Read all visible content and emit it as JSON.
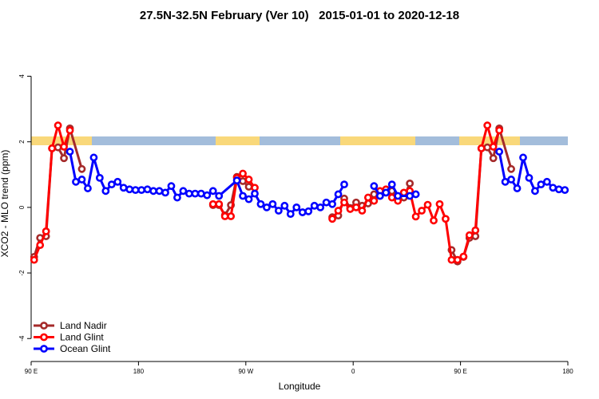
{
  "chart_data": {
    "type": "line",
    "title": "27.5N-32.5N February (Ver 10)   2015-01-01 to 2020-12-18",
    "x_label": "Longitude",
    "y_label": "XCO2 - MLO trend (ppm)",
    "xlim": [
      90,
      540
    ],
    "ylim": [
      -4.7,
      5.4
    ],
    "xticks": [
      {
        "value": 90,
        "label": "90 E"
      },
      {
        "value": 180,
        "label": "180"
      },
      {
        "value": 270,
        "label": "90 W"
      },
      {
        "value": 360,
        "label": "0"
      },
      {
        "value": 450,
        "label": "90 E"
      },
      {
        "value": 540,
        "label": "180"
      }
    ],
    "yticks": [
      -4,
      -2,
      0,
      2,
      4
    ],
    "legend": "bottom-left",
    "series": [
      {
        "name": "Land Nadir",
        "color": "#a52a2a",
        "x": [
          92.5,
          97.5,
          102.5,
          107.5,
          112.5,
          117.5,
          122.5,
          132.5,
          null,
          242.5,
          247.5,
          252.5,
          257.5,
          262.5,
          267.5,
          272.5,
          null,
          342.5,
          347.5,
          352.5,
          357.5,
          362.5,
          367.5,
          372.5,
          377.5,
          382.5,
          387.5,
          392.5,
          397.5,
          402.5,
          407.5,
          null,
          442.5,
          447.5,
          452.5,
          457.5,
          462.5,
          467.5,
          472.5,
          477.5,
          482.5,
          492.5
        ],
        "values": [
          -1.51,
          -0.93,
          -0.88,
          1.8,
          1.83,
          1.5,
          2.41,
          1.17,
          null,
          0.07,
          0.07,
          -0.24,
          0.07,
          0.93,
          0.8,
          0.63,
          null,
          -0.3,
          -0.25,
          0.27,
          -0.02,
          0.15,
          0.05,
          0.12,
          0.4,
          0.35,
          0.45,
          0.5,
          0.3,
          0.3,
          0.73,
          null,
          -1.3,
          -1.65,
          -1.51,
          -0.93,
          -0.88,
          1.8,
          1.83,
          1.5,
          2.41,
          1.17
        ]
      },
      {
        "name": "Land Glint",
        "color": "#ff0000",
        "x": [
          92.5,
          97.5,
          102.5,
          107.5,
          112.5,
          117.5,
          122.5,
          null,
          242.5,
          247.5,
          252.5,
          257.5,
          262.5,
          267.5,
          272.5,
          277.5,
          null,
          342.5,
          347.5,
          352.5,
          357.5,
          362.5,
          367.5,
          372.5,
          377.5,
          382.5,
          387.5,
          392.5,
          397.5,
          402.5,
          407.5,
          412.5,
          417.5,
          422.5,
          427.5,
          432.5,
          437.5,
          442.5,
          447.5,
          452.5,
          457.5,
          462.5,
          467.5,
          472.5,
          477.5,
          482.5
        ],
        "values": [
          -1.6,
          -1.15,
          -0.73,
          1.8,
          2.5,
          1.85,
          2.35,
          null,
          0.1,
          0.1,
          -0.27,
          -0.27,
          0.9,
          1.03,
          0.85,
          0.6,
          null,
          -0.35,
          -0.1,
          0.15,
          -0.05,
          0,
          -0.1,
          0.3,
          0.2,
          0.5,
          0.55,
          0.3,
          0.2,
          0.45,
          0.5,
          -0.28,
          -0.1,
          0.08,
          -0.4,
          0.1,
          -0.35,
          -1.6,
          -1.6,
          -1.5,
          -0.85,
          -0.7,
          1.8,
          2.5,
          1.85,
          2.35
        ]
      },
      {
        "name": "Ocean Glint",
        "color": "#0000ff",
        "x": [
          122.5,
          127.5,
          132.5,
          137.5,
          142.5,
          147.5,
          152.5,
          157.5,
          162.5,
          167.5,
          172.5,
          177.5,
          182.5,
          187.5,
          192.5,
          197.5,
          202.5,
          207.5,
          212.5,
          217.5,
          222.5,
          227.5,
          232.5,
          237.5,
          242.5,
          247.5,
          262.5,
          267.5,
          272.5,
          277.5,
          282.5,
          287.5,
          292.5,
          297.5,
          302.5,
          307.5,
          312.5,
          317.5,
          322.5,
          327.5,
          332.5,
          337.5,
          342.5,
          347.5,
          352.5,
          null,
          377.5,
          382.5,
          387.5,
          392.5,
          397.5,
          407.5,
          412.5,
          null,
          482.5,
          487.5,
          492.5,
          497.5,
          502.5,
          507.5,
          512.5,
          517.5,
          522.5,
          527.5,
          532.5,
          537.5
        ],
        "values": [
          1.7,
          0.78,
          0.85,
          0.58,
          1.52,
          0.9,
          0.5,
          0.7,
          0.78,
          0.6,
          0.55,
          0.53,
          0.53,
          0.55,
          0.5,
          0.5,
          0.45,
          0.65,
          0.3,
          0.5,
          0.42,
          0.42,
          0.42,
          0.37,
          0.5,
          0.35,
          0.82,
          0.35,
          0.25,
          0.42,
          0.1,
          0.0,
          0.1,
          -0.1,
          0.05,
          -0.2,
          0.0,
          -0.15,
          -0.12,
          0.05,
          0.0,
          0.15,
          0.1,
          0.4,
          0.7,
          null,
          0.65,
          0.35,
          0.45,
          0.7,
          0.35,
          0.35,
          0.4,
          null,
          1.7,
          0.78,
          0.85,
          0.58,
          1.52,
          0.9,
          0.5,
          0.7,
          0.78,
          0.6,
          0.55,
          0.53
        ]
      }
    ]
  }
}
